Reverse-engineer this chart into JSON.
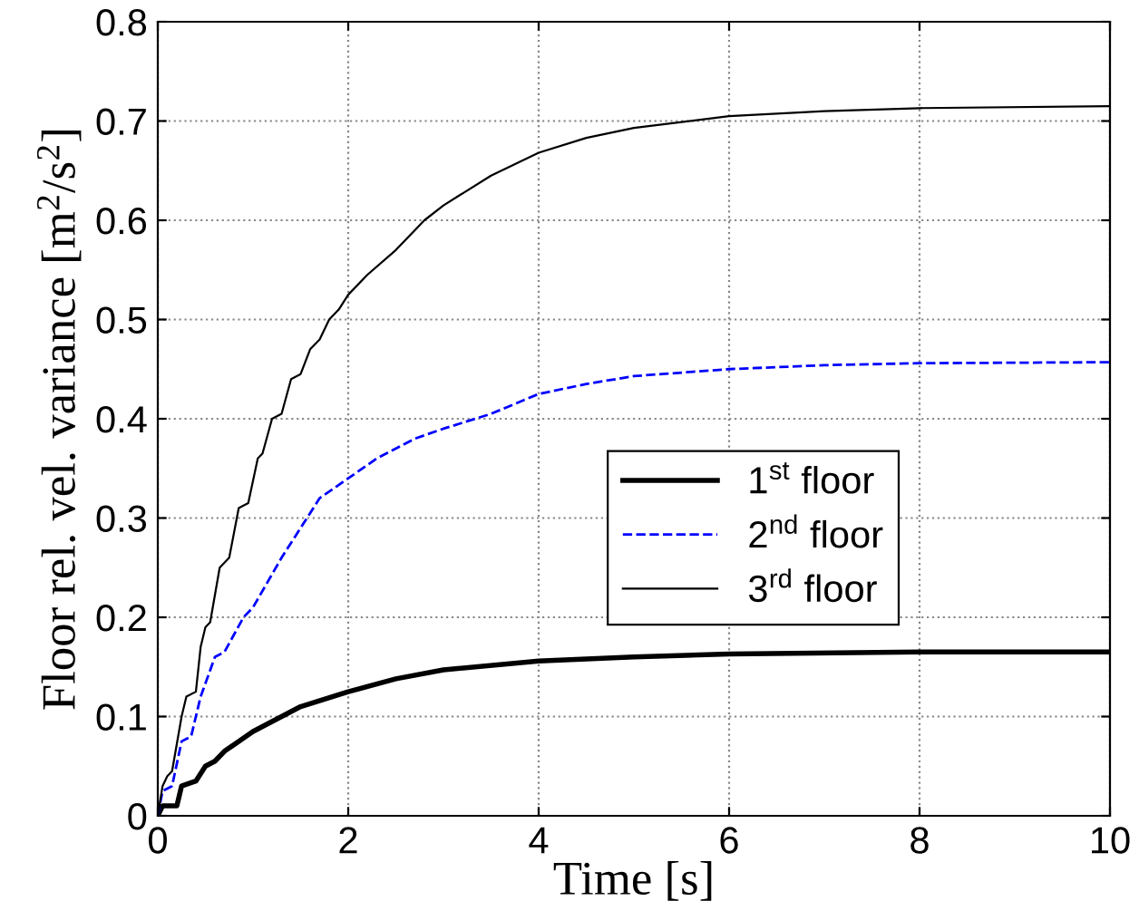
{
  "chart_data": {
    "type": "line",
    "xlabel": "Time [s]",
    "ylabel": "Floor rel. vel. variance [m$^{2}$/s$^{2}$]",
    "xlim": [
      0,
      10
    ],
    "ylim": [
      0,
      0.8
    ],
    "xticks": [
      0,
      2,
      4,
      6,
      8,
      10
    ],
    "yticks": [
      0,
      0.1,
      0.2,
      0.3,
      0.4,
      0.5,
      0.6,
      0.7,
      0.8
    ],
    "grid": true,
    "legend": "right",
    "marker": "none",
    "series": [
      {
        "name": "1$^{st}$ floor",
        "color": "#000000",
        "line_style": "solid",
        "x": [
          0,
          0.05,
          0.2,
          0.25,
          0.4,
          0.5,
          0.6,
          0.7,
          1,
          1.5,
          2,
          2.5,
          3,
          4,
          5,
          6,
          8,
          10
        ],
        "values": [
          0,
          0.01,
          0.01,
          0.03,
          0.035,
          0.05,
          0.055,
          0.065,
          0.085,
          0.11,
          0.125,
          0.138,
          0.147,
          0.156,
          0.16,
          0.163,
          0.165,
          0.165
        ]
      },
      {
        "name": "2$^{nd}$ floor",
        "color": "#0000ff",
        "line_style": "dashed",
        "x": [
          0,
          0.05,
          0.15,
          0.25,
          0.35,
          0.45,
          0.6,
          0.7,
          0.9,
          1.0,
          1.3,
          1.5,
          1.7,
          2,
          2.3,
          2.7,
          3,
          3.5,
          4,
          4.5,
          5,
          6,
          7,
          8,
          10
        ],
        "values": [
          0,
          0.025,
          0.03,
          0.075,
          0.08,
          0.12,
          0.16,
          0.165,
          0.2,
          0.21,
          0.26,
          0.29,
          0.32,
          0.34,
          0.36,
          0.38,
          0.39,
          0.405,
          0.425,
          0.435,
          0.443,
          0.45,
          0.454,
          0.456,
          0.457
        ]
      },
      {
        "name": "3$^{rd}$ floor",
        "color": "#000000",
        "line_style": "solid",
        "x": [
          0,
          0.05,
          0.1,
          0.15,
          0.25,
          0.3,
          0.4,
          0.45,
          0.5,
          0.55,
          0.65,
          0.75,
          0.85,
          0.95,
          1.05,
          1.1,
          1.2,
          1.3,
          1.4,
          1.5,
          1.6,
          1.7,
          1.8,
          1.9,
          2,
          2.2,
          2.5,
          2.8,
          3,
          3.5,
          4,
          4.5,
          5,
          6,
          7,
          8,
          10
        ],
        "values": [
          0,
          0.03,
          0.04,
          0.045,
          0.1,
          0.12,
          0.125,
          0.17,
          0.19,
          0.195,
          0.25,
          0.26,
          0.31,
          0.315,
          0.36,
          0.365,
          0.4,
          0.405,
          0.44,
          0.445,
          0.47,
          0.48,
          0.5,
          0.51,
          0.525,
          0.545,
          0.57,
          0.6,
          0.615,
          0.645,
          0.668,
          0.683,
          0.693,
          0.705,
          0.71,
          0.713,
          0.715
        ]
      }
    ]
  }
}
